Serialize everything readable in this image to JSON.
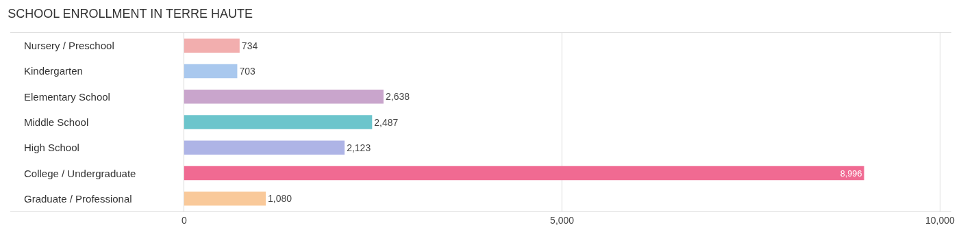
{
  "chart_data": {
    "type": "bar",
    "orientation": "horizontal",
    "title": "SCHOOL ENROLLMENT IN TERRE HAUTE",
    "categories": [
      "Nursery / Preschool",
      "Kindergarten",
      "Elementary School",
      "Middle School",
      "High School",
      "College / Undergraduate",
      "Graduate / Professional"
    ],
    "values": [
      734,
      703,
      2638,
      2487,
      2123,
      8996,
      1080
    ],
    "value_labels": [
      "734",
      "703",
      "2,638",
      "2,487",
      "2,123",
      "8,996",
      "1,080"
    ],
    "colors": [
      "#f2aeae",
      "#a9c8ee",
      "#c9a5cc",
      "#6cc5cc",
      "#aeb4e6",
      "#f06a92",
      "#f9c99a"
    ],
    "xlim": [
      -2300,
      10150
    ],
    "xticks": [
      0,
      {
        "value": 5000,
        "label": "5,000"
      },
      {
        "value": 10000,
        "label": "10,000"
      }
    ],
    "grid": "x",
    "legend": false
  }
}
